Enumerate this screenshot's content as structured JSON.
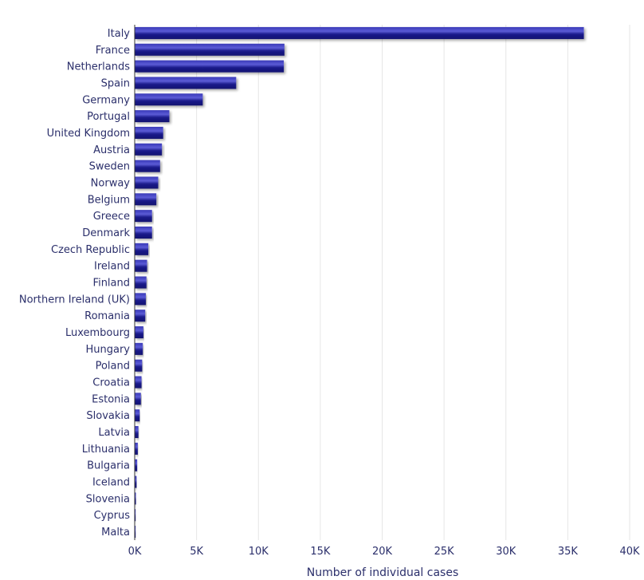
{
  "chart_data": {
    "type": "bar",
    "orientation": "horizontal",
    "xlabel": "Number of individual cases",
    "xlim": [
      0,
      40000
    ],
    "xticks": [
      0,
      5000,
      10000,
      15000,
      20000,
      25000,
      30000,
      35000,
      40000
    ],
    "xtick_labels": [
      "0K",
      "5K",
      "10K",
      "15K",
      "20K",
      "25K",
      "30K",
      "35K",
      "40K"
    ],
    "grid": "vertical",
    "colors": {
      "bar": "#1c1c8c",
      "bar_highlight": "#5b5bd6",
      "text": "#2b2f6b",
      "grid": "#e6e6e6",
      "axis": "#333333"
    },
    "categories": [
      "Italy",
      "France",
      "Netherlands",
      "Spain",
      "Germany",
      "Portugal",
      "United Kingdom",
      "Austria",
      "Sweden",
      "Norway",
      "Belgium",
      "Greece",
      "Denmark",
      "Czech Republic",
      "Ireland",
      "Finland",
      "Northern Ireland (UK)",
      "Romania",
      "Luxembourg",
      "Hungary",
      "Poland",
      "Croatia",
      "Estonia",
      "Slovakia",
      "Latvia",
      "Lithuania",
      "Bulgaria",
      "Iceland",
      "Slovenia",
      "Cyprus",
      "Malta"
    ],
    "values": [
      36300,
      12100,
      12050,
      8200,
      5500,
      2800,
      2300,
      2200,
      2050,
      1900,
      1750,
      1400,
      1400,
      1100,
      1000,
      950,
      900,
      850,
      700,
      650,
      600,
      550,
      500,
      400,
      300,
      250,
      200,
      150,
      100,
      50,
      20
    ]
  }
}
